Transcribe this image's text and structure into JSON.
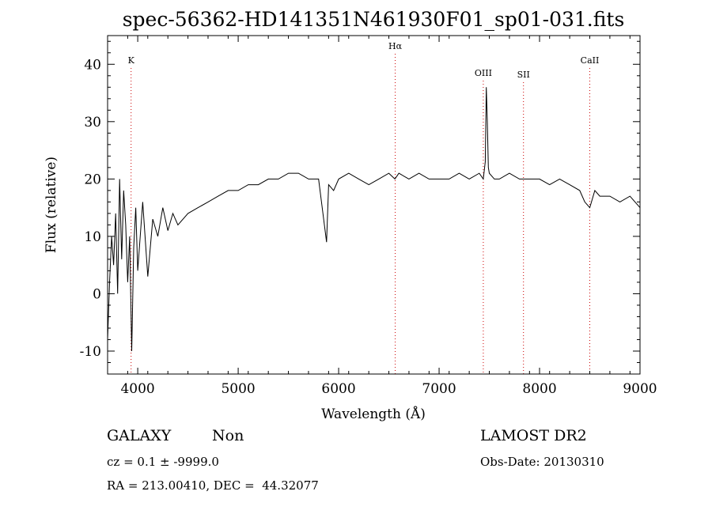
{
  "chart_data": {
    "type": "line",
    "title": "spec-56362-HD141351N461930F01_sp01-031.fits",
    "xlabel": "Wavelength (Å)",
    "ylabel": "Flux (relative)",
    "xlim": [
      3700,
      9000
    ],
    "ylim": [
      -14,
      45
    ],
    "x_ticks": [
      4000,
      5000,
      6000,
      7000,
      8000,
      9000
    ],
    "y_ticks": [
      -10,
      0,
      10,
      20,
      30,
      40
    ],
    "grid": false,
    "series": [
      {
        "x": [
          3700,
          3720,
          3740,
          3760,
          3780,
          3800,
          3820,
          3840,
          3860,
          3880,
          3900,
          3920,
          3940,
          3960,
          3980,
          4000,
          4050,
          4100,
          4150,
          4200,
          4250,
          4300,
          4350,
          4400,
          4500,
          4600,
          4700,
          4800,
          4900,
          5000,
          5100,
          5200,
          5300,
          5400,
          5500,
          5600,
          5700,
          5800,
          5880,
          5900,
          5950,
          6000,
          6100,
          6200,
          6300,
          6400,
          6500,
          6560,
          6600,
          6700,
          6800,
          6900,
          7000,
          7100,
          7200,
          7300,
          7400,
          7440,
          7460,
          7470,
          7480,
          7490,
          7500,
          7550,
          7600,
          7700,
          7800,
          7900,
          8000,
          8100,
          8200,
          8300,
          8400,
          8450,
          8500,
          8550,
          8600,
          8700,
          8800,
          8900,
          9000
        ],
        "values": [
          -8,
          2,
          10,
          5,
          14,
          0,
          20,
          6,
          18,
          12,
          2,
          10,
          -10,
          8,
          15,
          4,
          16,
          3,
          13,
          10,
          15,
          11,
          14,
          12,
          14,
          15,
          16,
          17,
          18,
          18,
          19,
          19,
          20,
          20,
          21,
          21,
          20,
          20,
          9,
          19,
          18,
          20,
          21,
          20,
          19,
          20,
          21,
          20,
          21,
          20,
          21,
          20,
          20,
          20,
          21,
          20,
          21,
          20,
          23,
          36,
          30,
          22,
          21,
          20,
          20,
          21,
          20,
          20,
          20,
          19,
          20,
          19,
          18,
          16,
          15,
          18,
          17,
          17,
          16,
          17,
          15
        ]
      }
    ],
    "lines": [
      {
        "label": "K",
        "wavelength": 3934,
        "color": "#cc0000"
      },
      {
        "label": "Hα",
        "wavelength": 6563,
        "color": "#cc0000"
      },
      {
        "label": "OIII",
        "wavelength": 7440,
        "color": "#cc0000"
      },
      {
        "label": "SII",
        "wavelength": 7840,
        "color": "#cc0000"
      },
      {
        "label": "CaII",
        "wavelength": 8500,
        "color": "#cc0000"
      }
    ]
  },
  "info": {
    "class": "GALAXY",
    "subclass": "Non",
    "survey": "LAMOST DR2",
    "cz": "cz = 0.1 ± -9999.0",
    "obs_date": "Obs-Date: 20130310",
    "coords": "RA = 213.00410, DEC =  44.32077"
  }
}
